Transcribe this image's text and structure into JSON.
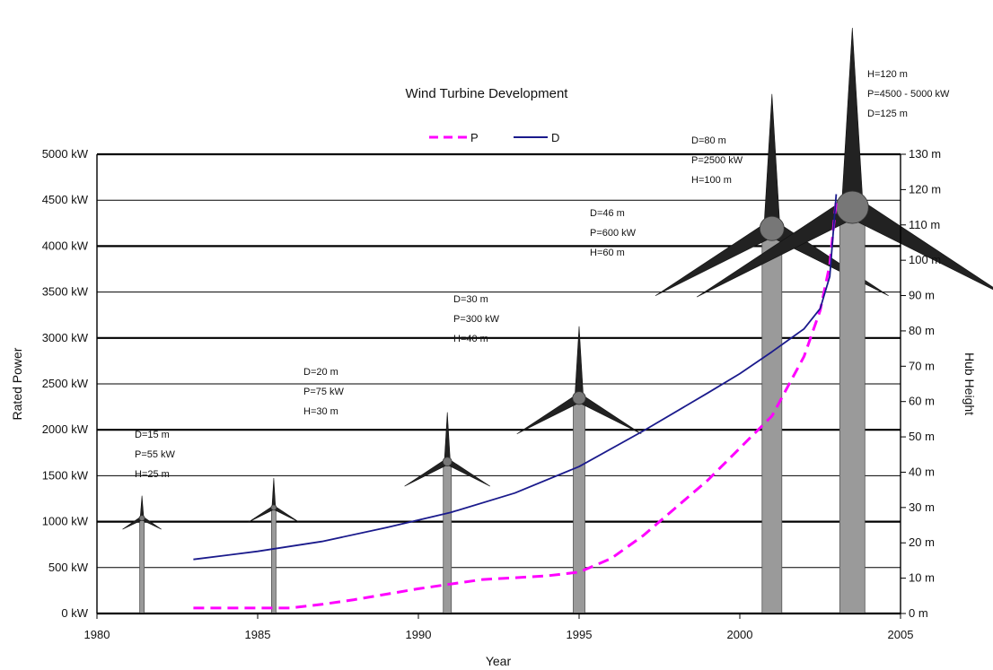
{
  "chart_data": {
    "type": "line",
    "title": "Wind Turbine Development",
    "xlabel": "Year",
    "ylabel": "Rated Power",
    "y2label": "Hub Height",
    "xlim": [
      1980,
      2005
    ],
    "ylim": [
      0,
      5000
    ],
    "y2lim": [
      0,
      130
    ],
    "x_ticks": [
      "1980",
      "1985",
      "1990",
      "1995",
      "2000",
      "2005"
    ],
    "y_ticks": [
      "0 kW",
      "500 kW",
      "1000 kW",
      "1500 kW",
      "2000 kW",
      "2500 kW",
      "3000 kW",
      "3500 kW",
      "4000 kW",
      "4500 kW",
      "5000 kW"
    ],
    "y2_ticks": [
      "0 m",
      "10 m",
      "20 m",
      "30 m",
      "40 m",
      "50 m",
      "60 m",
      "70 m",
      "80 m",
      "90 m",
      "100 m",
      "110 m",
      "120 m",
      "130 m"
    ],
    "legend": {
      "position": "top-center",
      "entries": [
        "P",
        "D"
      ]
    },
    "grid": true,
    "series": [
      {
        "name": "P",
        "color": "#ff00ff",
        "style": "dashed",
        "x": [
          1983.0,
          1986.0,
          1987.0,
          1988.0,
          1989.0,
          1990.0,
          1991.0,
          1992.0,
          1993.0,
          1994.0,
          1995.0,
          1996.0,
          1997.0,
          1998.0,
          1999.0,
          2000.0,
          2001.0,
          2002.0,
          2002.5,
          2002.8,
          2003.0
        ],
        "values": [
          60,
          60,
          100,
          150,
          210,
          270,
          320,
          370,
          390,
          410,
          450,
          600,
          850,
          1150,
          1450,
          1800,
          2150,
          2800,
          3300,
          3800,
          4500
        ]
      },
      {
        "name": "D",
        "color": "#1a1a8c",
        "style": "solid",
        "x": [
          1983.0,
          1985.0,
          1987.0,
          1989.0,
          1991.0,
          1993.0,
          1995.0,
          1997.0,
          1999.0,
          2000.0,
          2001.0,
          2002.0,
          2002.5,
          2002.8,
          2003.0
        ],
        "values": [
          15.3,
          17.6,
          20.4,
          24.3,
          28.6,
          34.1,
          41.6,
          51.7,
          62.4,
          67.9,
          74.1,
          80.6,
          86.3,
          95.4,
          118.7
        ]
      }
    ],
    "annotations": [
      {
        "year": 1981.5,
        "lines": [
          "D=15 m",
          "P=55 kW",
          "H=25 m"
        ]
      },
      {
        "year": 1985.7,
        "lines": [
          "D=20 m",
          "P=75 kW",
          "H=30 m"
        ]
      },
      {
        "year": 1992.2,
        "lines": [
          "D=30 m",
          "P=300 kW",
          "H=40 m"
        ]
      },
      {
        "year": 1996.8,
        "lines": [
          "D=46 m",
          "P=600 kW",
          "H=60 m"
        ]
      },
      {
        "year": 1999.0,
        "lines": [
          "D=80 m",
          "P=2500 kW",
          "H=100 m"
        ]
      },
      {
        "year": 2004.2,
        "lines": [
          "H=120 m",
          "P=4500 - 5000 kW",
          "D=125 m"
        ]
      }
    ],
    "turbines": [
      {
        "year": 1981.4,
        "hub_m": 27,
        "blade": 25,
        "tower_w": 5
      },
      {
        "year": 1985.5,
        "hub_m": 30,
        "blade": 33,
        "tower_w": 5
      },
      {
        "year": 1990.9,
        "hub_m": 43,
        "blade": 55,
        "tower_w": 9
      },
      {
        "year": 1995.0,
        "hub_m": 61,
        "blade": 80,
        "tower_w": 13
      },
      {
        "year": 2001.0,
        "hub_m": 109,
        "blade": 150,
        "tower_w": 22
      },
      {
        "year": 2003.5,
        "hub_m": 115,
        "blade": 200,
        "tower_w": 28
      }
    ]
  }
}
